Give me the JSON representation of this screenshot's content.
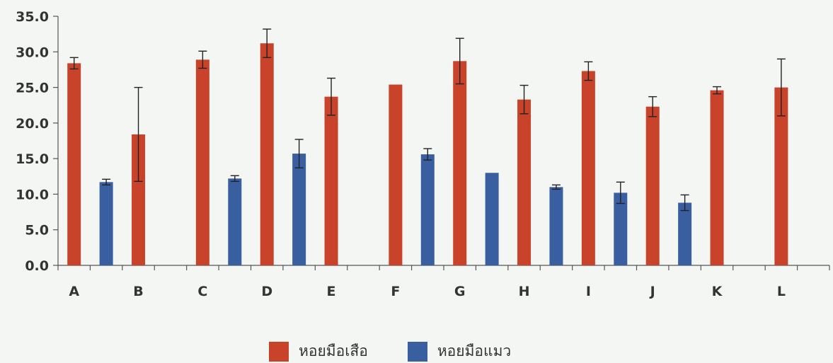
{
  "chart_data": {
    "type": "bar",
    "categories": [
      "A",
      "B",
      "C",
      "D",
      "E",
      "F",
      "G",
      "H",
      "I",
      "J",
      "K",
      "L"
    ],
    "ylim": [
      0,
      35
    ],
    "yticks": [
      "0.0",
      "5.0",
      "10.0",
      "15.0",
      "20.0",
      "25.0",
      "30.0",
      "35.0"
    ],
    "legend_position": "bottom",
    "grid": false,
    "series": [
      {
        "name": "หอยมือเสือ",
        "color": "#c9432b",
        "values": [
          28.4,
          18.4,
          28.9,
          31.2,
          23.7,
          25.4,
          28.7,
          23.3,
          27.3,
          22.3,
          24.6,
          25.0
        ],
        "error": [
          0.8,
          6.6,
          1.2,
          2.0,
          2.6,
          0.0,
          3.2,
          2.0,
          1.3,
          1.4,
          0.5,
          4.0
        ]
      },
      {
        "name": "หอยมือแมว",
        "color": "#3a5fa0",
        "values": [
          11.7,
          null,
          12.2,
          15.7,
          null,
          15.6,
          13.0,
          11.0,
          10.2,
          8.8,
          null,
          null
        ],
        "error": [
          0.4,
          null,
          0.4,
          2.0,
          null,
          0.8,
          0.0,
          0.3,
          1.5,
          1.1,
          null,
          null
        ]
      }
    ]
  }
}
